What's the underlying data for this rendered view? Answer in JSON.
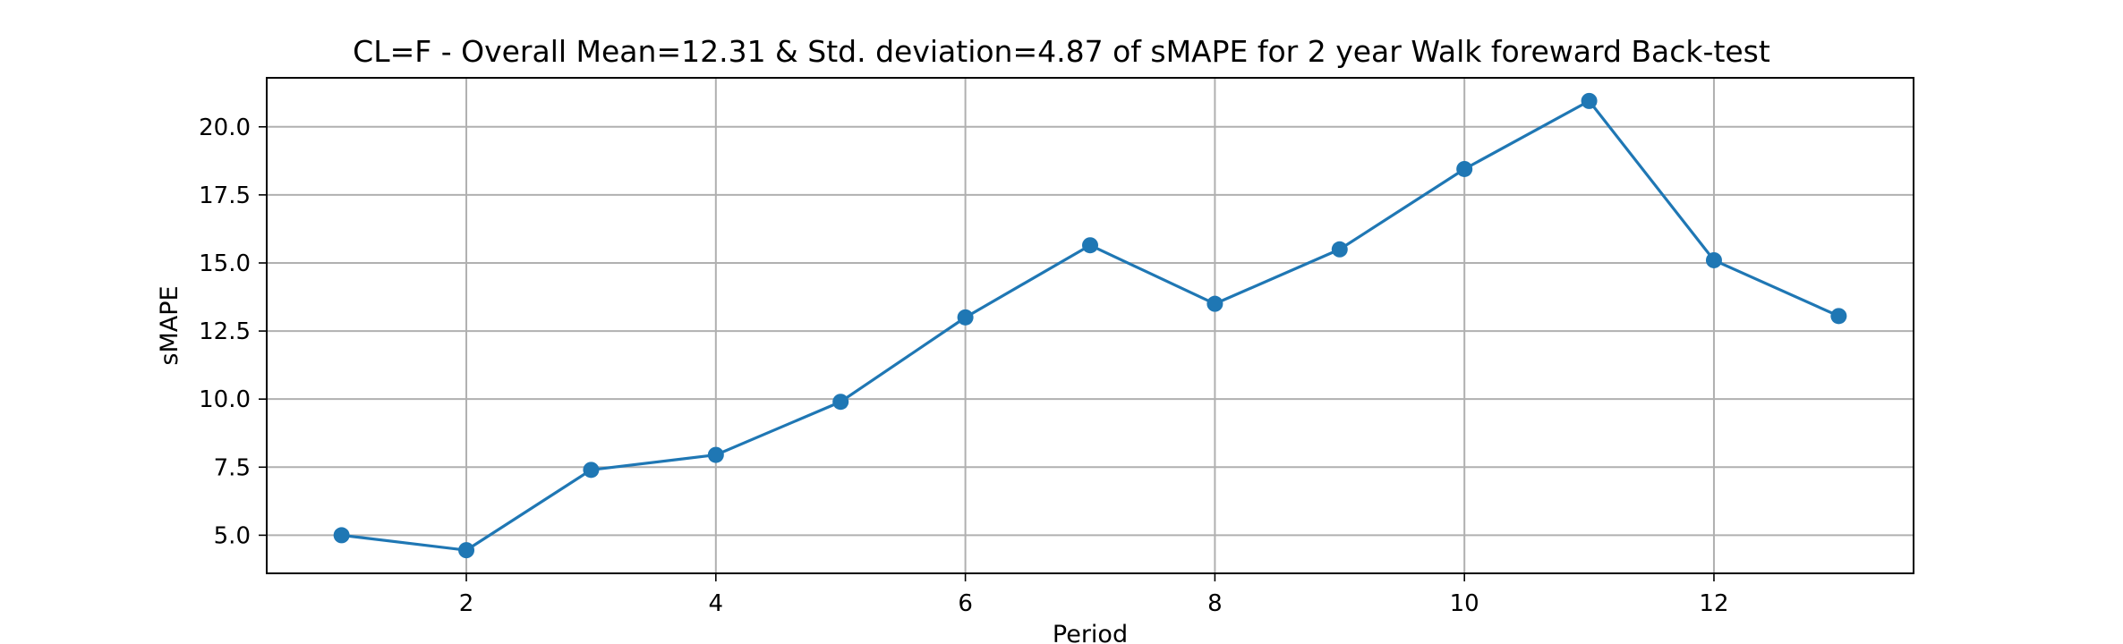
{
  "chart_data": {
    "type": "line",
    "title": "CL=F - Overall Mean=12.31 & Std. deviation=4.87 of sMAPE for 2 year Walk foreward Back-test",
    "xlabel": "Period",
    "ylabel": "sMAPE",
    "x": [
      1,
      2,
      3,
      4,
      5,
      6,
      7,
      8,
      9,
      10,
      11,
      12,
      13
    ],
    "series": [
      {
        "values": [
          5.0,
          4.45,
          7.4,
          7.95,
          9.9,
          13.0,
          15.65,
          13.5,
          15.5,
          18.45,
          20.95,
          15.1,
          13.05
        ],
        "color": "#1f77b4",
        "marker": "circle"
      }
    ],
    "xlim": [
      0.4,
      13.6
    ],
    "ylim": [
      3.6,
      21.8
    ],
    "xticks": [
      2,
      4,
      6,
      8,
      10,
      12
    ],
    "xtick_labels": [
      "2",
      "4",
      "6",
      "8",
      "10",
      "12"
    ],
    "yticks": [
      5.0,
      7.5,
      10.0,
      12.5,
      15.0,
      17.5,
      20.0
    ],
    "ytick_labels": [
      "5.0",
      "7.5",
      "10.0",
      "12.5",
      "15.0",
      "17.5",
      "20.0"
    ],
    "grid": true,
    "legend": false
  }
}
